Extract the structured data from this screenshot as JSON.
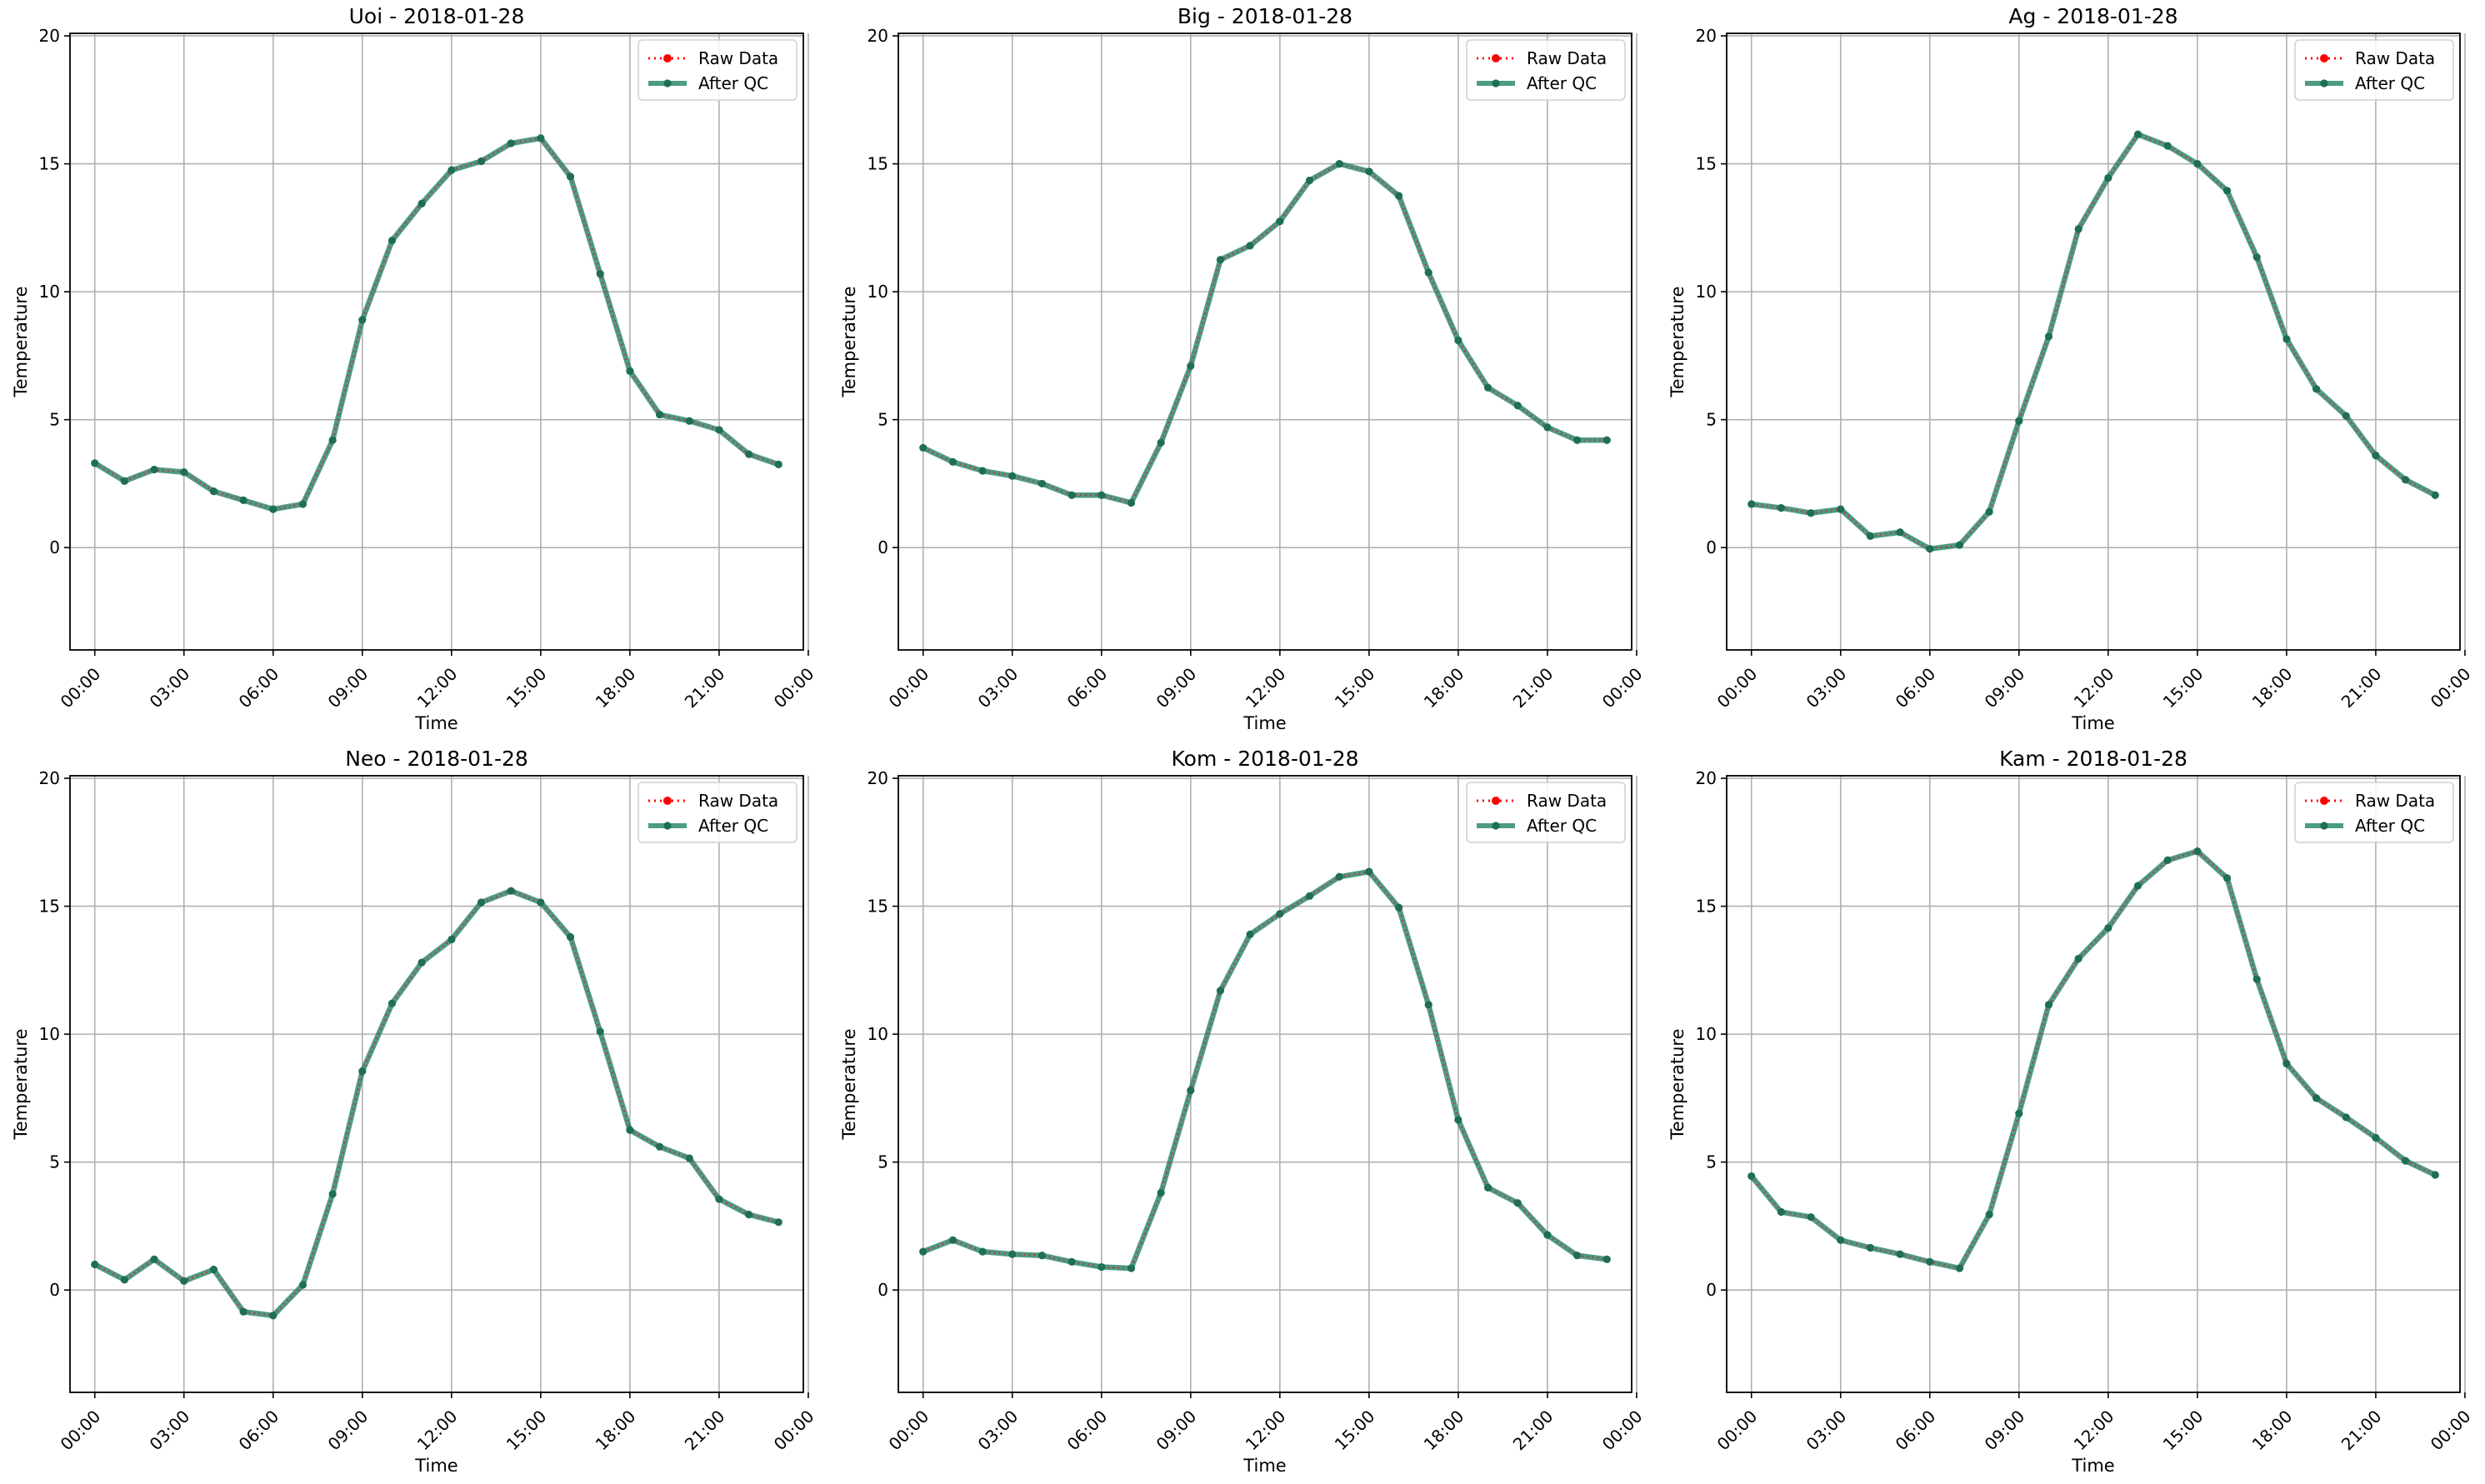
{
  "chart_data": [
    {
      "type": "line",
      "title": "Uoi - 2018-01-28",
      "xlabel": "Time",
      "ylabel": "Temperature",
      "xlim": [
        "-00:50",
        "23:50"
      ],
      "ylim": [
        -4,
        20.1
      ],
      "xticks": [
        "00:00",
        "03:00",
        "06:00",
        "09:00",
        "12:00",
        "15:00",
        "18:00",
        "21:00",
        "00:00"
      ],
      "yticks": [
        0,
        5,
        10,
        15,
        20
      ],
      "grid": true,
      "legend": "upper-right",
      "x": [
        "00:00",
        "01:00",
        "02:00",
        "03:00",
        "04:00",
        "05:00",
        "06:00",
        "07:00",
        "08:00",
        "09:00",
        "10:00",
        "11:00",
        "12:00",
        "13:00",
        "14:00",
        "15:00",
        "16:00",
        "17:00",
        "18:00",
        "19:00",
        "20:00",
        "21:00",
        "22:00",
        "23:00"
      ],
      "series": [
        {
          "name": "Raw Data",
          "color": "#ff0000",
          "style": "dotted",
          "marker": "circle",
          "values": [
            3.3,
            2.6,
            3.05,
            2.95,
            2.2,
            1.85,
            1.5,
            1.7,
            4.2,
            8.9,
            12.0,
            13.45,
            14.75,
            15.1,
            15.8,
            16.0,
            14.5,
            10.7,
            6.9,
            5.2,
            4.95,
            4.6,
            3.65,
            3.25
          ]
        },
        {
          "name": "After QC",
          "color": "#2e8b6e",
          "style": "solid",
          "marker": "circle",
          "values": [
            3.3,
            2.6,
            3.05,
            2.95,
            2.2,
            1.85,
            1.5,
            1.7,
            4.2,
            8.9,
            12.0,
            13.45,
            14.75,
            15.1,
            15.8,
            16.0,
            14.5,
            10.7,
            6.9,
            5.2,
            4.95,
            4.6,
            3.65,
            3.25
          ]
        }
      ]
    },
    {
      "type": "line",
      "title": "Big - 2018-01-28",
      "xlabel": "Time",
      "ylabel": "Temperature",
      "xlim": [
        "-00:50",
        "23:50"
      ],
      "ylim": [
        -4,
        20.1
      ],
      "xticks": [
        "00:00",
        "03:00",
        "06:00",
        "09:00",
        "12:00",
        "15:00",
        "18:00",
        "21:00",
        "00:00"
      ],
      "yticks": [
        0,
        5,
        10,
        15,
        20
      ],
      "grid": true,
      "legend": "upper-right",
      "x": [
        "00:00",
        "01:00",
        "02:00",
        "03:00",
        "04:00",
        "05:00",
        "06:00",
        "07:00",
        "08:00",
        "09:00",
        "10:00",
        "11:00",
        "12:00",
        "13:00",
        "14:00",
        "15:00",
        "16:00",
        "17:00",
        "18:00",
        "19:00",
        "20:00",
        "21:00",
        "22:00",
        "23:00"
      ],
      "series": [
        {
          "name": "Raw Data",
          "color": "#ff0000",
          "style": "dotted",
          "marker": "circle",
          "values": [
            3.9,
            3.35,
            3.0,
            2.8,
            2.5,
            2.05,
            2.05,
            1.75,
            4.1,
            7.1,
            11.25,
            11.8,
            12.75,
            14.35,
            15.0,
            14.7,
            13.75,
            10.75,
            8.1,
            6.25,
            5.55,
            4.7,
            4.2,
            4.2
          ]
        },
        {
          "name": "After QC",
          "color": "#2e8b6e",
          "style": "solid",
          "marker": "circle",
          "values": [
            3.9,
            3.35,
            3.0,
            2.8,
            2.5,
            2.05,
            2.05,
            1.75,
            4.1,
            7.1,
            11.25,
            11.8,
            12.75,
            14.35,
            15.0,
            14.7,
            13.75,
            10.75,
            8.1,
            6.25,
            5.55,
            4.7,
            4.2,
            4.2
          ]
        }
      ]
    },
    {
      "type": "line",
      "title": "Ag - 2018-01-28",
      "xlabel": "Time",
      "ylabel": "Temperature",
      "xlim": [
        "-00:50",
        "23:50"
      ],
      "ylim": [
        -4,
        20.1
      ],
      "xticks": [
        "00:00",
        "03:00",
        "06:00",
        "09:00",
        "12:00",
        "15:00",
        "18:00",
        "21:00",
        "00:00"
      ],
      "yticks": [
        0,
        5,
        10,
        15,
        20
      ],
      "grid": true,
      "legend": "upper-right",
      "x": [
        "00:00",
        "01:00",
        "02:00",
        "03:00",
        "04:00",
        "05:00",
        "06:00",
        "07:00",
        "08:00",
        "09:00",
        "10:00",
        "11:00",
        "12:00",
        "13:00",
        "14:00",
        "15:00",
        "16:00",
        "17:00",
        "18:00",
        "19:00",
        "20:00",
        "21:00",
        "22:00",
        "23:00"
      ],
      "series": [
        {
          "name": "Raw Data",
          "color": "#ff0000",
          "style": "dotted",
          "marker": "circle",
          "values": [
            1.7,
            1.55,
            1.35,
            1.5,
            0.45,
            0.6,
            -0.05,
            0.1,
            1.4,
            4.95,
            8.25,
            12.45,
            14.45,
            16.15,
            15.7,
            15.0,
            13.95,
            11.35,
            8.15,
            6.2,
            5.15,
            3.6,
            2.65,
            2.05
          ]
        },
        {
          "name": "After QC",
          "color": "#2e8b6e",
          "style": "solid",
          "marker": "circle",
          "values": [
            1.7,
            1.55,
            1.35,
            1.5,
            0.45,
            0.6,
            -0.05,
            0.1,
            1.4,
            4.95,
            8.25,
            12.45,
            14.45,
            16.15,
            15.7,
            15.0,
            13.95,
            11.35,
            8.15,
            6.2,
            5.15,
            3.6,
            2.65,
            2.05
          ]
        }
      ]
    },
    {
      "type": "line",
      "title": "Neo - 2018-01-28",
      "xlabel": "Time",
      "ylabel": "Temperature",
      "xlim": [
        "-00:50",
        "23:50"
      ],
      "ylim": [
        -4,
        20.1
      ],
      "xticks": [
        "00:00",
        "03:00",
        "06:00",
        "09:00",
        "12:00",
        "15:00",
        "18:00",
        "21:00",
        "00:00"
      ],
      "yticks": [
        0,
        5,
        10,
        15,
        20
      ],
      "grid": true,
      "legend": "upper-right",
      "x": [
        "00:00",
        "01:00",
        "02:00",
        "03:00",
        "04:00",
        "05:00",
        "06:00",
        "07:00",
        "08:00",
        "09:00",
        "10:00",
        "11:00",
        "12:00",
        "13:00",
        "14:00",
        "15:00",
        "16:00",
        "17:00",
        "18:00",
        "19:00",
        "20:00",
        "21:00",
        "22:00",
        "23:00"
      ],
      "series": [
        {
          "name": "Raw Data",
          "color": "#ff0000",
          "style": "dotted",
          "marker": "circle",
          "values": [
            1.0,
            0.4,
            1.2,
            0.35,
            0.8,
            -0.85,
            -1.0,
            0.2,
            3.75,
            8.55,
            11.2,
            12.8,
            13.7,
            15.15,
            15.6,
            15.15,
            13.8,
            10.1,
            6.25,
            5.6,
            5.15,
            3.55,
            2.95,
            2.65
          ]
        },
        {
          "name": "After QC",
          "color": "#2e8b6e",
          "style": "solid",
          "marker": "circle",
          "values": [
            1.0,
            0.4,
            1.2,
            0.35,
            0.8,
            -0.85,
            -1.0,
            0.2,
            3.75,
            8.55,
            11.2,
            12.8,
            13.7,
            15.15,
            15.6,
            15.15,
            13.8,
            10.1,
            6.25,
            5.6,
            5.15,
            3.55,
            2.95,
            2.65
          ]
        }
      ]
    },
    {
      "type": "line",
      "title": "Kom - 2018-01-28",
      "xlabel": "Time",
      "ylabel": "Temperature",
      "xlim": [
        "-00:50",
        "23:50"
      ],
      "ylim": [
        -4,
        20.1
      ],
      "xticks": [
        "00:00",
        "03:00",
        "06:00",
        "09:00",
        "12:00",
        "15:00",
        "18:00",
        "21:00",
        "00:00"
      ],
      "yticks": [
        0,
        5,
        10,
        15,
        20
      ],
      "grid": true,
      "legend": "upper-right",
      "x": [
        "00:00",
        "01:00",
        "02:00",
        "03:00",
        "04:00",
        "05:00",
        "06:00",
        "07:00",
        "08:00",
        "09:00",
        "10:00",
        "11:00",
        "12:00",
        "13:00",
        "14:00",
        "15:00",
        "16:00",
        "17:00",
        "18:00",
        "19:00",
        "20:00",
        "21:00",
        "22:00",
        "23:00"
      ],
      "series": [
        {
          "name": "Raw Data",
          "color": "#ff0000",
          "style": "dotted",
          "marker": "circle",
          "values": [
            1.5,
            1.95,
            1.5,
            1.4,
            1.35,
            1.1,
            0.9,
            0.85,
            3.8,
            7.8,
            11.7,
            13.9,
            14.7,
            15.4,
            16.15,
            16.35,
            14.95,
            11.15,
            6.65,
            4.0,
            3.4,
            2.15,
            1.35,
            1.2
          ]
        },
        {
          "name": "After QC",
          "color": "#2e8b6e",
          "style": "solid",
          "marker": "circle",
          "values": [
            1.5,
            1.95,
            1.5,
            1.4,
            1.35,
            1.1,
            0.9,
            0.85,
            3.8,
            7.8,
            11.7,
            13.9,
            14.7,
            15.4,
            16.15,
            16.35,
            14.95,
            11.15,
            6.65,
            4.0,
            3.4,
            2.15,
            1.35,
            1.2
          ]
        }
      ]
    },
    {
      "type": "line",
      "title": "Kam - 2018-01-28",
      "xlabel": "Time",
      "ylabel": "Temperature",
      "xlim": [
        "-00:50",
        "23:50"
      ],
      "ylim": [
        -4,
        20.1
      ],
      "xticks": [
        "00:00",
        "03:00",
        "06:00",
        "09:00",
        "12:00",
        "15:00",
        "18:00",
        "21:00",
        "00:00"
      ],
      "yticks": [
        0,
        5,
        10,
        15,
        20
      ],
      "grid": true,
      "legend": "upper-right",
      "x": [
        "00:00",
        "01:00",
        "02:00",
        "03:00",
        "04:00",
        "05:00",
        "06:00",
        "07:00",
        "08:00",
        "09:00",
        "10:00",
        "11:00",
        "12:00",
        "13:00",
        "14:00",
        "15:00",
        "16:00",
        "17:00",
        "18:00",
        "19:00",
        "20:00",
        "21:00",
        "22:00",
        "23:00"
      ],
      "series": [
        {
          "name": "Raw Data",
          "color": "#ff0000",
          "style": "dotted",
          "marker": "circle",
          "values": [
            4.45,
            3.05,
            2.85,
            1.95,
            1.65,
            1.4,
            1.1,
            0.85,
            2.95,
            6.9,
            11.15,
            12.95,
            14.15,
            15.8,
            16.8,
            17.15,
            16.1,
            12.15,
            8.85,
            7.5,
            6.75,
            5.95,
            5.05,
            4.5
          ]
        },
        {
          "name": "After QC",
          "color": "#2e8b6e",
          "style": "solid",
          "marker": "circle",
          "values": [
            4.45,
            3.05,
            2.85,
            1.95,
            1.65,
            1.4,
            1.1,
            0.85,
            2.95,
            6.9,
            11.15,
            12.95,
            14.15,
            15.8,
            16.8,
            17.15,
            16.1,
            12.15,
            8.85,
            7.5,
            6.75,
            5.95,
            5.05,
            4.5
          ]
        }
      ]
    }
  ]
}
